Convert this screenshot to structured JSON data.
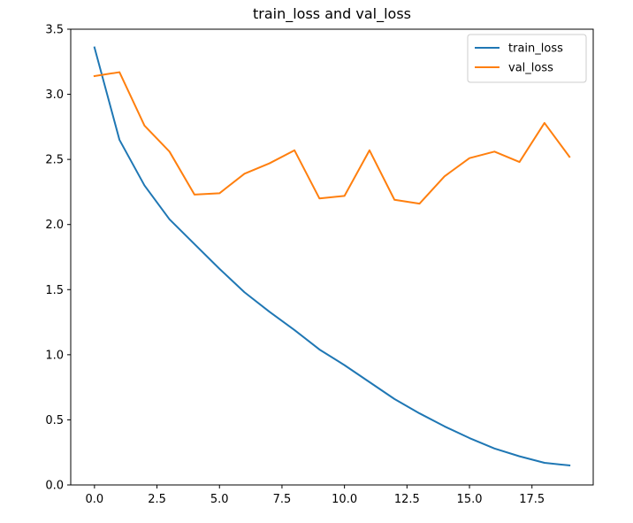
{
  "chart_data": {
    "type": "line",
    "title": "train_loss and val_loss",
    "xlabel": "",
    "ylabel": "",
    "xlim": [
      -0.95,
      19.95
    ],
    "ylim": [
      0.0,
      3.5
    ],
    "xticks": [
      0.0,
      2.5,
      5.0,
      7.5,
      10.0,
      12.5,
      15.0,
      17.5
    ],
    "xtick_labels": [
      "0.0",
      "2.5",
      "5.0",
      "7.5",
      "10.0",
      "12.5",
      "15.0",
      "17.5"
    ],
    "yticks": [
      0.0,
      0.5,
      1.0,
      1.5,
      2.0,
      2.5,
      3.0,
      3.5
    ],
    "ytick_labels": [
      "0.0",
      "0.5",
      "1.0",
      "1.5",
      "2.0",
      "2.5",
      "3.0",
      "3.5"
    ],
    "grid": false,
    "legend_position": "top-right",
    "x": [
      0,
      1,
      2,
      3,
      4,
      5,
      6,
      7,
      8,
      9,
      10,
      11,
      12,
      13,
      14,
      15,
      16,
      17,
      18,
      19
    ],
    "series": [
      {
        "name": "train_loss",
        "color": "#1f77b4",
        "values": [
          3.36,
          2.65,
          2.3,
          2.04,
          1.85,
          1.66,
          1.48,
          1.33,
          1.19,
          1.04,
          0.92,
          0.79,
          0.66,
          0.55,
          0.45,
          0.36,
          0.28,
          0.22,
          0.17,
          0.15
        ]
      },
      {
        "name": "val_loss",
        "color": "#ff7f0e",
        "values": [
          3.14,
          3.17,
          2.76,
          2.56,
          2.23,
          2.24,
          2.39,
          2.47,
          2.57,
          2.2,
          2.22,
          2.57,
          2.19,
          2.16,
          2.37,
          2.51,
          2.56,
          2.48,
          2.78,
          2.52
        ]
      }
    ]
  }
}
